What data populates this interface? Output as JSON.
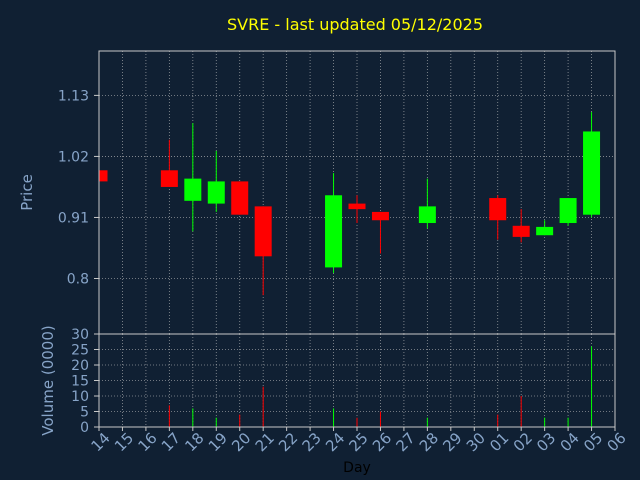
{
  "title": "SVRE - last updated 05/12/2025",
  "colors": {
    "background": "#102033",
    "title": "#ffff00",
    "axis_text": "#87a4c8",
    "frame": "#c8c8c8",
    "grid": "#c8c8c8",
    "up": "#00ff00",
    "down": "#ff0000"
  },
  "chart_data": [
    {
      "type": "candlestick",
      "ylabel": "Price",
      "ylim": [
        0.7,
        1.21
      ],
      "yticks": [
        0.8,
        0.91,
        1.02,
        1.13
      ],
      "ytick_labels": [
        "0.8",
        "0.91",
        "1.02",
        "1.13"
      ],
      "grid": true,
      "candles": [
        {
          "date": "2025-04-14",
          "open": 0.995,
          "high": 0.995,
          "low": 0.975,
          "close": 0.975
        },
        {
          "date": "2025-04-17",
          "open": 0.995,
          "high": 1.05,
          "low": 0.965,
          "close": 0.965
        },
        {
          "date": "2025-04-18",
          "open": 0.94,
          "high": 1.08,
          "low": 0.885,
          "close": 0.98
        },
        {
          "date": "2025-04-19",
          "open": 0.935,
          "high": 1.03,
          "low": 0.92,
          "close": 0.975
        },
        {
          "date": "2025-04-20",
          "open": 0.975,
          "high": 0.975,
          "low": 0.915,
          "close": 0.915
        },
        {
          "date": "2025-04-21",
          "open": 0.93,
          "high": 0.93,
          "low": 0.77,
          "close": 0.84
        },
        {
          "date": "2025-04-24",
          "open": 0.82,
          "high": 0.99,
          "low": 0.81,
          "close": 0.95
        },
        {
          "date": "2025-04-25",
          "open": 0.935,
          "high": 0.95,
          "low": 0.9,
          "close": 0.925
        },
        {
          "date": "2025-04-26",
          "open": 0.92,
          "high": 0.92,
          "low": 0.845,
          "close": 0.905
        },
        {
          "date": "2025-04-28",
          "open": 0.9,
          "high": 0.98,
          "low": 0.89,
          "close": 0.93
        },
        {
          "date": "2025-05-01",
          "open": 0.945,
          "high": 0.95,
          "low": 0.87,
          "close": 0.905
        },
        {
          "date": "2025-05-02",
          "open": 0.895,
          "high": 0.925,
          "low": 0.865,
          "close": 0.875
        },
        {
          "date": "2025-05-03",
          "open": 0.878,
          "high": 0.905,
          "low": 0.878,
          "close": 0.893
        },
        {
          "date": "2025-05-04",
          "open": 0.9,
          "high": 0.945,
          "low": 0.895,
          "close": 0.945
        },
        {
          "date": "2025-05-05",
          "open": 0.915,
          "high": 1.1,
          "low": 0.91,
          "close": 1.065
        }
      ]
    },
    {
      "type": "bar",
      "ylabel": "Volume (0000)",
      "xlabel": "Day",
      "ylim": [
        0,
        30
      ],
      "yticks": [
        0,
        5,
        10,
        15,
        20,
        25,
        30
      ],
      "ytick_labels": [
        "0",
        "5",
        "10",
        "15",
        "20",
        "25",
        "30"
      ],
      "grid": true,
      "x_tick_labels": [
        "14",
        "15",
        "16",
        "17",
        "18",
        "19",
        "20",
        "21",
        "22",
        "23",
        "24",
        "25",
        "26",
        "27",
        "28",
        "29",
        "30",
        "01",
        "02",
        "03",
        "04",
        "05",
        "06"
      ],
      "bars": [
        {
          "date": "2025-04-14",
          "value": 1,
          "dir": "down"
        },
        {
          "date": "2025-04-17",
          "value": 7,
          "dir": "down"
        },
        {
          "date": "2025-04-18",
          "value": 6,
          "dir": "up"
        },
        {
          "date": "2025-04-19",
          "value": 3,
          "dir": "up"
        },
        {
          "date": "2025-04-20",
          "value": 4,
          "dir": "down"
        },
        {
          "date": "2025-04-21",
          "value": 13,
          "dir": "down"
        },
        {
          "date": "2025-04-24",
          "value": 6,
          "dir": "up"
        },
        {
          "date": "2025-04-25",
          "value": 3,
          "dir": "down"
        },
        {
          "date": "2025-04-26",
          "value": 5,
          "dir": "down"
        },
        {
          "date": "2025-04-28",
          "value": 3,
          "dir": "up"
        },
        {
          "date": "2025-05-01",
          "value": 4,
          "dir": "down"
        },
        {
          "date": "2025-05-02",
          "value": 10,
          "dir": "down"
        },
        {
          "date": "2025-05-03",
          "value": 3,
          "dir": "up"
        },
        {
          "date": "2025-05-04",
          "value": 3,
          "dir": "up"
        },
        {
          "date": "2025-05-05",
          "value": 26,
          "dir": "up"
        }
      ]
    }
  ]
}
